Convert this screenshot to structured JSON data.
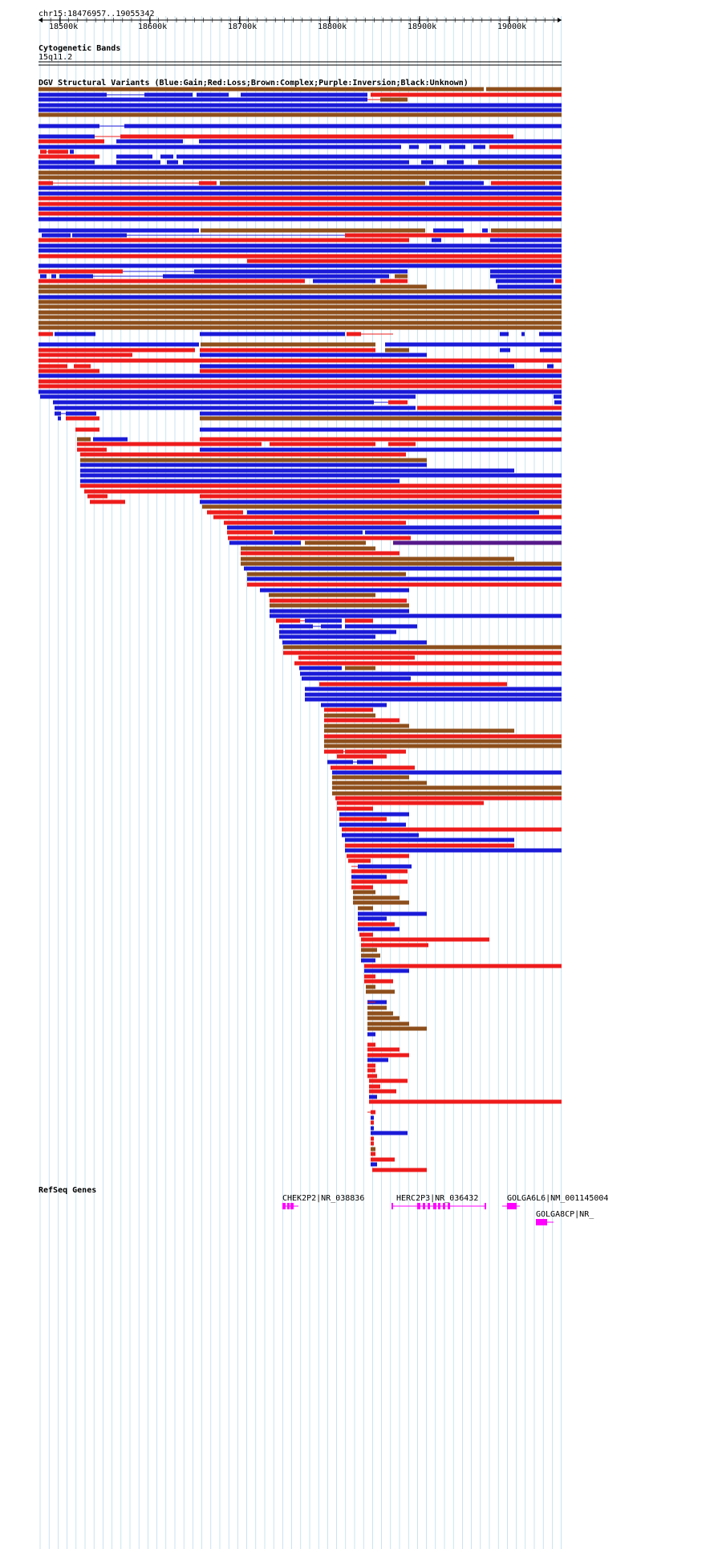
{
  "browser": {
    "position_label": "chr15:18476957..19055342",
    "ruler_ticks": [
      "18500k",
      "18600k",
      "18700k",
      "18800k",
      "18900k",
      "19000k"
    ]
  },
  "tracks": {
    "cytoband": {
      "title": "Cytogenetic Bands",
      "band": "15q11.2"
    },
    "dgv": {
      "title": "DGV Structural Variants (Blue:Gain;Red:Loss;Brown:Complex;Purple:Inversion;Black:Unknown)"
    },
    "refseq": {
      "title": "RefSeq Genes",
      "genes": [
        {
          "label": "CHEK2P2|NR_038836"
        },
        {
          "label": "HERC2P3|NR_036432"
        },
        {
          "label": "GOLGA6L6|NM_001145004"
        },
        {
          "label": "GOLGA8CP|NR_"
        }
      ]
    }
  },
  "colors": {
    "gain": "#1a1ad8",
    "loss": "#ee1c1c",
    "complex": "#8e4f1c",
    "inversion": "#55188a",
    "gene": "#ff00ff",
    "grid": "#a7d3ea"
  }
}
